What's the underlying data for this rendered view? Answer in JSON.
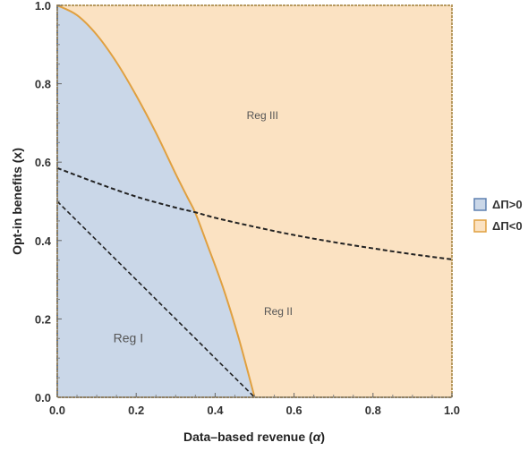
{
  "chart_data": {
    "type": "area",
    "xlabel_text": "Data–based revenue (",
    "xlabel_symbol": "α",
    "xlabel_close": ")",
    "ylabel": "Opt-in benefits (x)",
    "xlim": [
      0,
      1
    ],
    "ylim": [
      0,
      1
    ],
    "xticks": [
      "0.0",
      "0.2",
      "0.4",
      "0.6",
      "0.8",
      "1.0"
    ],
    "yticks": [
      "0.0",
      "0.2",
      "0.4",
      "0.6",
      "0.8",
      "1.0"
    ],
    "legend": [
      {
        "label": "ΔΠ>0",
        "fill": "#cad7e8",
        "stroke": "#5e80b0"
      },
      {
        "label": "ΔΠ<0",
        "fill": "#fbe2c2",
        "stroke": "#e0a040"
      }
    ],
    "legend_position": "right",
    "regions": [
      {
        "label": "Reg I",
        "x": 0.18,
        "y": 0.14
      },
      {
        "label": "Reg II",
        "x": 0.56,
        "y": 0.21
      },
      {
        "label": "Reg III",
        "x": 0.52,
        "y": 0.71
      }
    ],
    "boundary_curve": {
      "name": "ΔΠ=0 boundary",
      "points": [
        [
          0,
          1.0
        ],
        [
          0.05,
          0.975
        ],
        [
          0.1,
          0.925
        ],
        [
          0.15,
          0.855
        ],
        [
          0.2,
          0.77
        ],
        [
          0.25,
          0.675
        ],
        [
          0.3,
          0.57
        ],
        [
          0.33,
          0.51
        ],
        [
          0.35,
          0.47
        ],
        [
          0.38,
          0.39
        ],
        [
          0.42,
          0.28
        ],
        [
          0.46,
          0.15
        ],
        [
          0.5,
          0.0
        ]
      ]
    },
    "dashed_upper": {
      "points": [
        [
          0,
          0.585
        ],
        [
          0.1,
          0.547
        ],
        [
          0.2,
          0.512
        ],
        [
          0.3,
          0.484
        ],
        [
          0.35,
          0.472
        ],
        [
          0.4,
          0.458
        ],
        [
          0.5,
          0.435
        ],
        [
          0.6,
          0.414
        ],
        [
          0.7,
          0.396
        ],
        [
          0.8,
          0.38
        ],
        [
          0.9,
          0.365
        ],
        [
          1.0,
          0.352
        ]
      ]
    },
    "dashed_lower": {
      "points": [
        [
          0,
          0.5
        ],
        [
          0.5,
          0.0
        ]
      ]
    },
    "colors": {
      "positive_fill": "#cad7e8",
      "negative_fill": "#fbe2c2",
      "boundary_stroke": "#e0a040",
      "dashed_stroke": "#222222",
      "frame_stroke": "#b89a60"
    }
  }
}
